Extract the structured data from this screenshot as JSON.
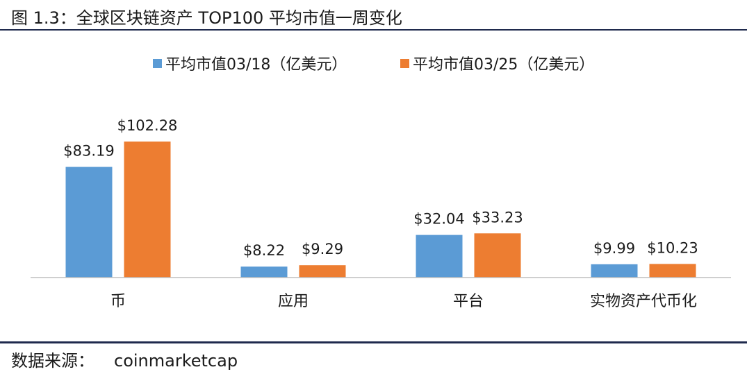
{
  "figure": {
    "title": "图 1.3：全球区块链资产 TOP100 平均市值一周变化",
    "source_label": "数据来源：",
    "source_value": "coinmarketcap"
  },
  "colors": {
    "series_1": "#5b9bd5",
    "series_2": "#ed7d31",
    "rule": "#1f2a4d",
    "axis": "#bfbfbf",
    "text": "#1a1a1a"
  },
  "chart_data": {
    "type": "bar",
    "categories": [
      "币",
      "应用",
      "平台",
      "实物资产代币化"
    ],
    "series": [
      {
        "name": "平均市值03/18（亿美元）",
        "values": [
          83.19,
          8.22,
          32.04,
          9.99
        ],
        "labels": [
          "$83.19",
          "$8.22",
          "$32.04",
          "$9.99"
        ]
      },
      {
        "name": "平均市值03/25（亿美元）",
        "values": [
          102.28,
          9.29,
          33.23,
          10.23
        ],
        "labels": [
          "$102.28",
          "$9.29",
          "$33.23",
          "$10.23"
        ]
      }
    ],
    "ylim": [
      0,
      120
    ],
    "legend": "top-center",
    "grid": false
  }
}
